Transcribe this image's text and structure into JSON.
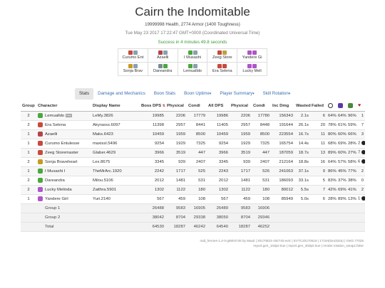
{
  "header": {
    "title": "Cairn the Indomitable",
    "health_line": "19999998 Health, 2774 Armor (1400 Toughness)",
    "date_line": "Tue May 23 2017 17:22:47 GMT+0000 (Coordinated Universal Time)",
    "result": "Success in 4 minutes 49.8 seconds"
  },
  "squad": [
    [
      {
        "name": "Curumo Ent",
        "colors": [
          "#c74a3c",
          "#8aa0b0"
        ]
      },
      {
        "name": "Azaelli",
        "colors": [
          "#b54545",
          "#8aa0b0"
        ]
      },
      {
        "name": "I Musashi",
        "colors": [
          "#4aa83c",
          "#8aa0b0"
        ]
      },
      {
        "name": "Zeeg Store",
        "colors": [
          "#c74a3c",
          "#c0a040"
        ]
      },
      {
        "name": "Yandere Gi",
        "colors": [
          "#b055c8",
          "#b055c8"
        ]
      }
    ],
    [
      {
        "name": "Sonja Brav",
        "colors": [
          "#c99a20",
          "#8aa0b0"
        ]
      },
      {
        "name": "Dareandra",
        "colors": [
          "#7a8a95",
          "#4aa83c"
        ]
      },
      {
        "name": "Lemualldo",
        "colors": [
          "#4aa83c",
          "#8aa0b0"
        ]
      },
      {
        "name": "Era Selena",
        "colors": [
          "#c74a3c",
          "#c74a3c"
        ]
      },
      {
        "name": "Lucky Meli",
        "colors": [
          "#b055c8",
          "#b055c8"
        ]
      }
    ]
  ],
  "tabs": [
    {
      "label": "Stats",
      "active": true,
      "caret": ""
    },
    {
      "label": "Damage and Mechanics",
      "active": false,
      "caret": ""
    },
    {
      "label": "Boon Stats",
      "active": false,
      "caret": ""
    },
    {
      "label": "Boon Uptime",
      "active": false,
      "caret": "▾"
    },
    {
      "label": "Player Summary",
      "active": false,
      "caret": "▾"
    },
    {
      "label": "Skill Rotation",
      "active": false,
      "caret": "▾"
    }
  ],
  "columns": [
    "Group",
    "Character",
    "Display Name",
    "Boss DPS",
    "Physical",
    "Condi",
    "All DPS",
    "Physical",
    "Condi",
    "Inc Dmg",
    "Wasted",
    "Failed",
    "",
    "",
    "",
    ""
  ],
  "column_icons": {
    "boss_dps": "sort-icon",
    "failed": "failed-icon",
    "boon1": "might-icon",
    "boon2": "quickness-icon",
    "boon3": "alacrity-icon",
    "heart": "♥"
  },
  "rows": [
    {
      "group": "2",
      "character": "Lemualldo",
      "badge": "RW",
      "prof_color": "#4aa83c",
      "display": "LeMy.3826",
      "boss_dps": "19985",
      "boss_phys": "2206",
      "boss_condi": "17779",
      "all_dps": "19986",
      "all_phys": "2206",
      "all_condi": "17780",
      "inc_dmg": "156343",
      "wasted": "2.1s",
      "failed": "6",
      "b1": "64%",
      "b2": "64%",
      "b3": "96%",
      "h": "1",
      "dead": false
    },
    {
      "group": "2",
      "character": "Era Selena",
      "badge": "",
      "prof_color": "#c74a3c",
      "display": "Akyrasss.6097",
      "boss_dps": "11398",
      "boss_phys": "2957",
      "boss_condi": "8441",
      "all_dps": "11405",
      "all_phys": "2957",
      "all_condi": "8448",
      "inc_dmg": "191644",
      "wasted": "26.1s",
      "failed": "20",
      "b1": "78%",
      "b2": "61%",
      "b3": "59%",
      "h": "7",
      "dead": false
    },
    {
      "group": "1",
      "character": "Azaelli",
      "badge": "",
      "prof_color": "#b54545",
      "display": "Maks.6423",
      "boss_dps": "10459",
      "boss_phys": "1959",
      "boss_condi": "8500",
      "all_dps": "10459",
      "all_phys": "1959",
      "all_condi": "8500",
      "inc_dmg": "223554",
      "wasted": "16.7s",
      "failed": "11",
      "b1": "80%",
      "b2": "60%",
      "b3": "66%",
      "h": "3",
      "dead": false
    },
    {
      "group": "1",
      "character": "Curumo Entulesse",
      "badge": "",
      "prof_color": "#c74a3c",
      "display": "maxissl.5496",
      "boss_dps": "9254",
      "boss_phys": "1929",
      "boss_condi": "7325",
      "all_dps": "9254",
      "all_phys": "1929",
      "all_condi": "7325",
      "inc_dmg": "165754",
      "wasted": "14.4s",
      "failed": "11",
      "b1": "68%",
      "b2": "69%",
      "b3": "28%",
      "h": "2",
      "dead": true
    },
    {
      "group": "1",
      "character": "Zeeg Storemaster",
      "badge": "",
      "prof_color": "#c74a3c",
      "display": "Glaber.4629",
      "boss_dps": "3966",
      "boss_phys": "3519",
      "boss_condi": "447",
      "all_dps": "3966",
      "all_phys": "3519",
      "all_condi": "447",
      "inc_dmg": "187059",
      "wasted": "18.7s",
      "failed": "13",
      "b1": "89%",
      "b2": "60%",
      "b3": "27%",
      "h": "7",
      "dead": true
    },
    {
      "group": "2",
      "character": "Sonja Braveheart",
      "badge": "",
      "prof_color": "#c99a20",
      "display": "Lex.8675",
      "boss_dps": "3345",
      "boss_phys": "939",
      "boss_condi": "2407",
      "all_dps": "3345",
      "all_phys": "939",
      "all_condi": "2407",
      "inc_dmg": "212164",
      "wasted": "18.8s",
      "failed": "16",
      "b1": "64%",
      "b2": "57%",
      "b3": "58%",
      "h": "6",
      "dead": true
    },
    {
      "group": "1",
      "character": "I Musashi I",
      "badge": "",
      "prof_color": "#4aa83c",
      "display": "TheMrArc.1920",
      "boss_dps": "2242",
      "boss_phys": "1717",
      "boss_condi": "525",
      "all_dps": "2243",
      "all_phys": "1717",
      "all_condi": "526",
      "inc_dmg": "241063",
      "wasted": "37.1s",
      "failed": "9",
      "b1": "86%",
      "b2": "45%",
      "b3": "77%",
      "h": "2",
      "dead": false
    },
    {
      "group": "2",
      "character": "Dareandra",
      "badge": "",
      "prof_color": "#4aa83c",
      "display": "Milou.5106",
      "boss_dps": "2012",
      "boss_phys": "1481",
      "boss_condi": "531",
      "all_dps": "2012",
      "all_phys": "1481",
      "all_condi": "531",
      "inc_dmg": "186093",
      "wasted": "33.1s",
      "failed": "5",
      "b1": "83%",
      "b2": "37%",
      "b3": "38%",
      "h": "0",
      "dead": false
    },
    {
      "group": "2",
      "character": "Lucky Melinda",
      "badge": "",
      "prof_color": "#b055c8",
      "display": "Zaithra.5901",
      "boss_dps": "1302",
      "boss_phys": "1122",
      "boss_condi": "180",
      "all_dps": "1302",
      "all_phys": "1122",
      "all_condi": "180",
      "inc_dmg": "80012",
      "wasted": "5.5s",
      "failed": "7",
      "b1": "42%",
      "b2": "69%",
      "b3": "41%",
      "h": "2",
      "dead": false
    },
    {
      "group": "1",
      "character": "Yandere Girl",
      "badge": "",
      "prof_color": "#b055c8",
      "display": "Yuri.2140",
      "boss_dps": "567",
      "boss_phys": "459",
      "boss_condi": "108",
      "all_dps": "567",
      "all_phys": "459",
      "all_condi": "108",
      "inc_dmg": "85949",
      "wasted": "5.0s",
      "failed": "6",
      "b1": "28%",
      "b2": "89%",
      "b3": "13%",
      "h": "1",
      "dead": true
    }
  ],
  "summary": [
    {
      "label": "Group 1",
      "boss_dps": "26488",
      "boss_phys": "9583",
      "boss_condi": "16905",
      "all_dps": "26489",
      "all_phys": "9583",
      "all_condi": "16906"
    },
    {
      "label": "Group 2",
      "boss_dps": "38042",
      "boss_phys": "8704",
      "boss_condi": "29338",
      "all_dps": "38050",
      "all_phys": "8704",
      "all_condi": "29346"
    },
    {
      "label": "Total",
      "boss_dps": "64530",
      "boss_phys": "18287",
      "boss_condi": "46242",
      "all_dps": "64540",
      "all_phys": "18287",
      "all_condi": "46252"
    }
  ],
  "footer": {
    "line1": "raid_heroes-1.2-0-g5804745 by Mauti | 20170523-192740.evtc | EVTC20170518 | 17194(0x4332a) | GW2.77025",
    "line2": "report.gen_10dps:true | report.gen_30dps:true | render.rotation_weap1:false"
  }
}
